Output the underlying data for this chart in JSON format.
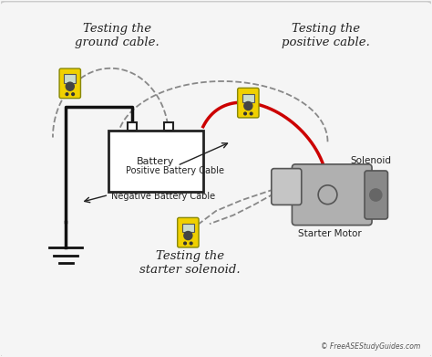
{
  "bg_color": "#f5f5f5",
  "border_color": "#cccccc",
  "copyright": "© FreeASEStudyGuides.com",
  "labels": {
    "ground_cable": "Testing the\nground cable.",
    "positive_cable": "Testing the\npositive cable.",
    "starter_solenoid": "Testing the\nstarter solenoid.",
    "negative_cable": "Negative Battery Cable",
    "positive_battery_cable": "Positive Battery Cable",
    "solenoid": "Solenoid",
    "starter_motor": "Starter Motor",
    "battery": "Battery"
  },
  "colors": {
    "black": "#222222",
    "red": "#cc0000",
    "yellow": "#f0d000",
    "yellow_border": "#888800",
    "dark_gray": "#555555",
    "wire_black": "#111111",
    "dashed": "#888888",
    "motor_body": "#b0b0b0",
    "motor_dark": "#888888",
    "screen": "#ccddcc"
  }
}
